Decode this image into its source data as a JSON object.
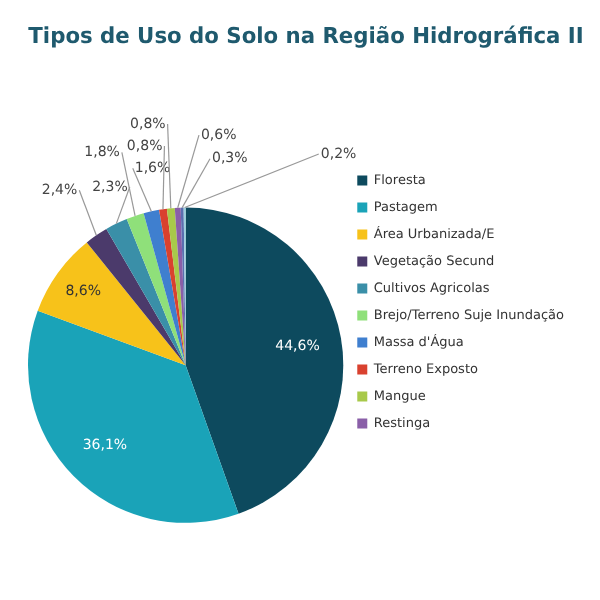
{
  "chart_data": {
    "type": "pie",
    "title": "Tipos de Uso do Solo na Região Hidrográfica II",
    "categories": [
      "Floresta",
      "Pastagem",
      "Área Urbanizada/E",
      "Vegetação Secund",
      "Cultivos Agricolas",
      "Brejo/Terreno Suje Inundação",
      "Massa d'Água",
      "Terreno Exposto",
      "Mangue",
      "Restinga",
      null,
      null
    ],
    "values": [
      44.6,
      36.1,
      8.6,
      2.4,
      2.3,
      1.8,
      1.6,
      0.8,
      0.8,
      0.6,
      0.3,
      0.2
    ],
    "value_labels": [
      "44,6%",
      "36,1%",
      "8,6%",
      "2,4%",
      "2,3%",
      "1,8%",
      "1,6%",
      "0,8%",
      "0,8%",
      "0,6%",
      "0,3%",
      "0,2%"
    ],
    "colors": [
      "#0d4a5e",
      "#1aa3b8",
      "#f7c21a",
      "#4b3a6b",
      "#3a8fa8",
      "#8fe07a",
      "#3f7fcf",
      "#d9412f",
      "#a8c94a",
      "#8a5fa8",
      "#5a6fb0",
      "#9ad0e0"
    ],
    "legend": "right"
  }
}
